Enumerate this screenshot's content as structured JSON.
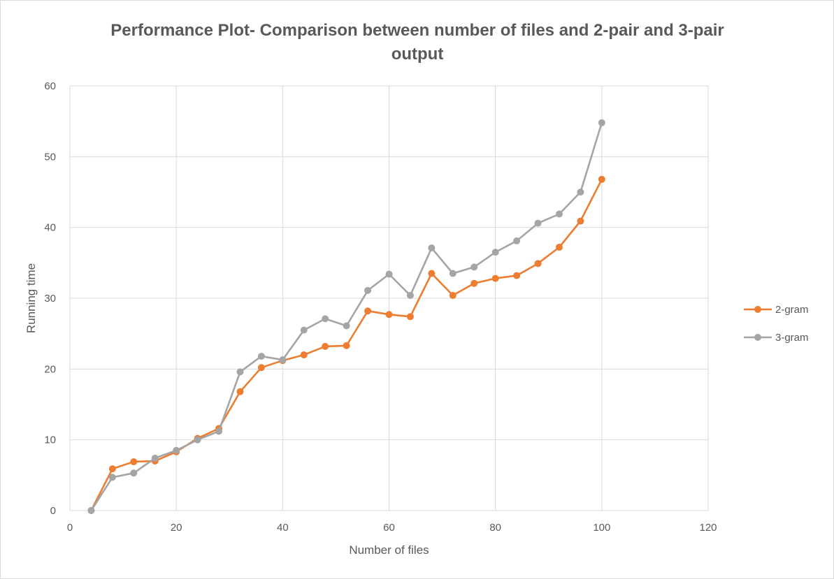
{
  "chart_data": {
    "type": "line",
    "title_line1": "Performance Plot- Comparison between number of files and 2-pair and 3-pair",
    "title_line2": "output",
    "xlabel": "Number of files",
    "ylabel": "Running time",
    "xlim": [
      0,
      120
    ],
    "ylim": [
      0,
      60
    ],
    "xticks": [
      0,
      20,
      40,
      60,
      80,
      100,
      120
    ],
    "yticks": [
      0,
      10,
      20,
      30,
      40,
      50,
      60
    ],
    "grid": true,
    "legend_position": "right",
    "x": [
      4,
      8,
      12,
      16,
      20,
      24,
      28,
      32,
      36,
      40,
      44,
      48,
      52,
      56,
      60,
      64,
      68,
      72,
      76,
      80,
      84,
      88,
      92,
      96,
      100
    ],
    "series": [
      {
        "name": "2-gram",
        "color": "#ed7d31",
        "values": [
          0,
          5.9,
          6.9,
          7.0,
          8.3,
          10.2,
          11.6,
          16.8,
          20.2,
          21.2,
          22.0,
          23.2,
          23.3,
          28.2,
          27.7,
          27.4,
          33.5,
          30.4,
          32.1,
          32.8,
          33.2,
          34.9,
          37.2,
          40.9,
          46.8
        ]
      },
      {
        "name": "3-gram",
        "color": "#a5a5a5",
        "values": [
          0,
          4.7,
          5.3,
          7.4,
          8.5,
          10.0,
          11.2,
          19.6,
          21.8,
          21.3,
          25.5,
          27.1,
          26.1,
          31.1,
          33.4,
          30.4,
          37.1,
          33.5,
          34.4,
          36.5,
          38.1,
          40.6,
          41.9,
          45.0,
          54.8
        ]
      }
    ]
  }
}
